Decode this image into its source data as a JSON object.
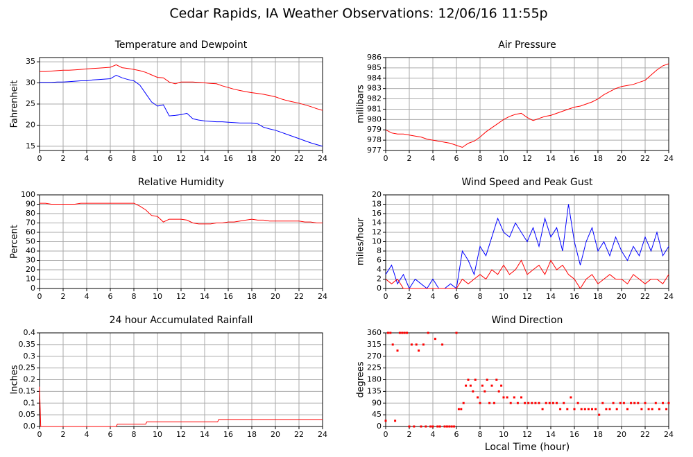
{
  "title": "Cedar Rapids, IA Weather Observations: 12/06/16 11:55p",
  "chart_data": [
    {
      "type": "line",
      "title": "Temperature and Dewpoint",
      "ylabel": "Fahrenheit",
      "x": [
        0,
        0.5,
        1,
        1.5,
        2,
        2.5,
        3,
        3.5,
        4,
        4.5,
        5,
        5.5,
        6,
        6.5,
        7,
        7.5,
        8,
        8.5,
        9,
        9.5,
        10,
        10.5,
        11,
        11.5,
        12,
        12.5,
        13,
        13.5,
        14,
        14.5,
        15,
        15.5,
        16,
        16.5,
        17,
        17.5,
        18,
        18.5,
        19,
        19.5,
        20,
        20.5,
        21,
        21.5,
        22,
        22.5,
        23,
        23.5,
        24
      ],
      "series": [
        {
          "color": "#ff0000",
          "values": [
            32.7,
            32.7,
            32.8,
            32.9,
            33,
            33,
            33.1,
            33.2,
            33.3,
            33.4,
            33.5,
            33.6,
            33.7,
            34.3,
            33.6,
            33.4,
            33.2,
            32.9,
            32.5,
            31.9,
            31.3,
            31.2,
            30.2,
            29.8,
            30.2,
            30.2,
            30.2,
            30.1,
            30,
            29.9,
            29.8,
            29.3,
            28.9,
            28.5,
            28.2,
            27.9,
            27.7,
            27.5,
            27.3,
            27,
            26.7,
            26.2,
            25.8,
            25.5,
            25.2,
            24.8,
            24.4,
            23.9,
            23.5
          ]
        },
        {
          "color": "#0000ff",
          "values": [
            30.1,
            30.1,
            30.1,
            30.2,
            30.2,
            30.3,
            30.4,
            30.5,
            30.5,
            30.7,
            30.8,
            30.9,
            31,
            31.8,
            31.2,
            30.8,
            30.5,
            29.5,
            27.5,
            25.5,
            24.5,
            24.8,
            22.2,
            22.3,
            22.5,
            22.8,
            21.5,
            21.2,
            21,
            20.9,
            20.8,
            20.8,
            20.7,
            20.6,
            20.5,
            20.5,
            20.5,
            20.3,
            19.5,
            19.1,
            18.8,
            18.3,
            17.8,
            17.3,
            16.8,
            16.3,
            15.8,
            15.4,
            15
          ]
        }
      ],
      "xlim": [
        0,
        24
      ],
      "xticks": [
        0,
        2,
        4,
        6,
        8,
        10,
        12,
        14,
        16,
        18,
        20,
        22,
        24
      ],
      "ylim": [
        14,
        36
      ],
      "yticks": [
        15,
        20,
        25,
        30,
        35
      ],
      "grid": true
    },
    {
      "type": "line",
      "title": "Air Pressure",
      "ylabel": "millibars",
      "x": [
        0,
        0.5,
        1,
        1.5,
        2,
        2.5,
        3,
        3.5,
        4,
        4.5,
        5,
        5.5,
        6,
        6.5,
        7,
        7.5,
        8,
        8.5,
        9,
        9.5,
        10,
        10.5,
        11,
        11.5,
        12,
        12.5,
        13,
        13.5,
        14,
        14.5,
        15,
        15.5,
        16,
        16.5,
        17,
        17.5,
        18,
        18.5,
        19,
        19.5,
        20,
        20.5,
        21,
        21.5,
        22,
        22.5,
        23,
        23.5,
        24
      ],
      "series": [
        {
          "color": "#ff0000",
          "values": [
            979,
            978.7,
            978.6,
            978.6,
            978.5,
            978.4,
            978.3,
            978.1,
            978,
            977.9,
            977.8,
            977.7,
            977.5,
            977.3,
            977.7,
            977.9,
            978.3,
            978.8,
            979.2,
            979.6,
            980,
            980.3,
            980.5,
            980.6,
            980.2,
            979.9,
            980.1,
            980.3,
            980.4,
            980.6,
            980.8,
            981,
            981.2,
            981.3,
            981.5,
            981.7,
            982,
            982.4,
            982.7,
            983,
            983.2,
            983.3,
            983.4,
            983.6,
            983.8,
            984.3,
            984.8,
            985.2,
            985.4
          ]
        }
      ],
      "xlim": [
        0,
        24
      ],
      "xticks": [
        0,
        2,
        4,
        6,
        8,
        10,
        12,
        14,
        16,
        18,
        20,
        22,
        24
      ],
      "ylim": [
        977,
        986
      ],
      "yticks": [
        977,
        978,
        979,
        980,
        981,
        982,
        983,
        984,
        985,
        986
      ],
      "grid": true
    },
    {
      "type": "line",
      "title": "Relative Humidity",
      "ylabel": "Percent",
      "x": [
        0,
        0.5,
        1,
        1.5,
        2,
        2.5,
        3,
        3.5,
        4,
        4.5,
        5,
        5.5,
        6,
        6.5,
        7,
        7.5,
        8,
        8.5,
        9,
        9.5,
        10,
        10.5,
        11,
        11.5,
        12,
        12.5,
        13,
        13.5,
        14,
        14.5,
        15,
        15.5,
        16,
        16.5,
        17,
        17.5,
        18,
        18.5,
        19,
        19.5,
        20,
        20.5,
        21,
        21.5,
        22,
        22.5,
        23,
        23.5,
        24
      ],
      "series": [
        {
          "color": "#ff0000",
          "values": [
            91,
            91,
            90,
            90,
            90,
            90,
            90,
            91,
            91,
            91,
            91,
            91,
            91,
            91,
            91,
            91,
            91,
            88,
            84,
            78,
            77,
            71,
            74,
            74,
            74,
            73,
            70,
            69,
            69,
            69,
            70,
            70,
            71,
            71,
            72,
            73,
            74,
            73,
            73,
            72,
            72,
            72,
            72,
            72,
            72,
            71,
            71,
            70,
            70
          ]
        }
      ],
      "xlim": [
        0,
        24
      ],
      "xticks": [
        0,
        2,
        4,
        6,
        8,
        10,
        12,
        14,
        16,
        18,
        20,
        22,
        24
      ],
      "ylim": [
        0,
        100
      ],
      "yticks": [
        0,
        10,
        20,
        30,
        40,
        50,
        60,
        70,
        80,
        90,
        100
      ],
      "grid": true
    },
    {
      "type": "line",
      "title": "Wind Speed and Peak Gust",
      "ylabel": "miles/hour",
      "x": [
        0,
        0.5,
        1,
        1.5,
        2,
        2.5,
        3,
        3.5,
        4,
        4.5,
        5,
        5.5,
        6,
        6.5,
        7,
        7.5,
        8,
        8.5,
        9,
        9.5,
        10,
        10.5,
        11,
        11.5,
        12,
        12.5,
        13,
        13.5,
        14,
        14.5,
        15,
        15.5,
        16,
        16.5,
        17,
        17.5,
        18,
        18.5,
        19,
        19.5,
        20,
        20.5,
        21,
        21.5,
        22,
        22.5,
        23,
        23.5,
        24
      ],
      "series": [
        {
          "color": "#0000ff",
          "values": [
            3,
            5,
            1,
            3,
            0,
            2,
            1,
            0,
            2,
            0,
            0,
            1,
            0,
            8,
            6,
            3,
            9,
            7,
            11,
            15,
            12,
            11,
            14,
            12,
            10,
            13,
            9,
            15,
            11,
            13,
            8,
            18,
            10,
            5,
            10,
            13,
            8,
            10,
            7,
            11,
            8,
            6,
            9,
            7,
            11,
            8,
            12,
            7,
            9
          ]
        },
        {
          "color": "#ff0000",
          "values": [
            2,
            1,
            2,
            0,
            0,
            0,
            0,
            0,
            0,
            0,
            0,
            0,
            0,
            2,
            1,
            2,
            3,
            2,
            4,
            3,
            5,
            3,
            4,
            6,
            3,
            4,
            5,
            3,
            6,
            4,
            5,
            3,
            2,
            0,
            2,
            3,
            1,
            2,
            3,
            2,
            2,
            1,
            3,
            2,
            1,
            2,
            2,
            1,
            3
          ]
        }
      ],
      "xlim": [
        0,
        24
      ],
      "xticks": [
        0,
        2,
        4,
        6,
        8,
        10,
        12,
        14,
        16,
        18,
        20,
        22,
        24
      ],
      "ylim": [
        0,
        20
      ],
      "yticks": [
        0,
        2,
        4,
        6,
        8,
        10,
        12,
        14,
        16,
        18,
        20
      ],
      "grid": true
    },
    {
      "type": "line",
      "title": "24 hour Accumulated Rainfall",
      "ylabel": "Inches",
      "x": [
        0,
        0.1,
        6.5,
        6.6,
        9,
        9.1,
        15.1,
        15.2,
        24
      ],
      "series": [
        {
          "color": "#ff0000",
          "values": [
            0.17,
            0,
            0,
            0.01,
            0.01,
            0.02,
            0.02,
            0.03,
            0.03
          ]
        }
      ],
      "xlim": [
        0,
        24
      ],
      "xticks": [
        0,
        2,
        4,
        6,
        8,
        10,
        12,
        14,
        16,
        18,
        20,
        22,
        24
      ],
      "ylim": [
        0,
        0.4
      ],
      "yticks": [
        {
          "value": 0,
          "label": "0.0"
        },
        0.05,
        0.1,
        0.15,
        0.2,
        0.25,
        0.3,
        0.35,
        0.4
      ],
      "grid": true
    },
    {
      "type": "scatter",
      "title": "Wind Direction",
      "ylabel": "degrees",
      "xlabel": "Local Time (hour)",
      "x": [
        0,
        0.2,
        0.4,
        0.6,
        0.8,
        1,
        1.2,
        1.4,
        1.6,
        1.8,
        2,
        2.2,
        2.4,
        2.6,
        2.8,
        3,
        3.2,
        3.4,
        3.6,
        3.8,
        4,
        4.2,
        4.4,
        4.6,
        4.8,
        5,
        5.2,
        5.4,
        5.6,
        5.8,
        6,
        6.2,
        6.4,
        6.6,
        6.8,
        7,
        7.2,
        7.4,
        7.6,
        7.8,
        8,
        8.2,
        8.4,
        8.6,
        8.8,
        9,
        9.2,
        9.4,
        9.6,
        9.8,
        10,
        10.3,
        10.6,
        10.9,
        11.2,
        11.5,
        11.8,
        12.1,
        12.4,
        12.7,
        13,
        13.3,
        13.6,
        13.9,
        14.2,
        14.5,
        14.8,
        15.1,
        15.4,
        15.7,
        16,
        16.3,
        16.6,
        16.9,
        17.2,
        17.5,
        17.8,
        18.1,
        18.4,
        18.7,
        19,
        19.3,
        19.6,
        19.9,
        20.2,
        20.5,
        20.8,
        21.1,
        21.4,
        21.7,
        22,
        22.3,
        22.6,
        22.9,
        23.2,
        23.5,
        23.8,
        24
      ],
      "values": [
        22,
        360,
        360,
        315,
        22,
        292,
        360,
        360,
        360,
        360,
        0,
        315,
        0,
        315,
        292,
        0,
        315,
        0,
        360,
        0,
        0,
        337,
        0,
        0,
        315,
        0,
        0,
        0,
        0,
        0,
        360,
        67,
        67,
        90,
        157,
        180,
        157,
        135,
        180,
        112,
        90,
        157,
        135,
        180,
        90,
        157,
        90,
        180,
        135,
        157,
        112,
        112,
        90,
        112,
        90,
        112,
        90,
        90,
        90,
        90,
        90,
        67,
        90,
        90,
        90,
        90,
        67,
        90,
        67,
        112,
        67,
        90,
        67,
        67,
        67,
        67,
        67,
        45,
        90,
        67,
        67,
        90,
        67,
        90,
        90,
        67,
        90,
        90,
        90,
        67,
        90,
        67,
        67,
        90,
        67,
        90,
        67,
        90
      ],
      "color": "#ff0000",
      "xlim": [
        0,
        24
      ],
      "xticks": [
        0,
        2,
        4,
        6,
        8,
        10,
        12,
        14,
        16,
        18,
        20,
        22,
        24
      ],
      "ylim": [
        0,
        360
      ],
      "yticks": [
        0,
        45,
        90,
        135,
        180,
        225,
        270,
        315,
        360
      ],
      "grid": true
    }
  ]
}
